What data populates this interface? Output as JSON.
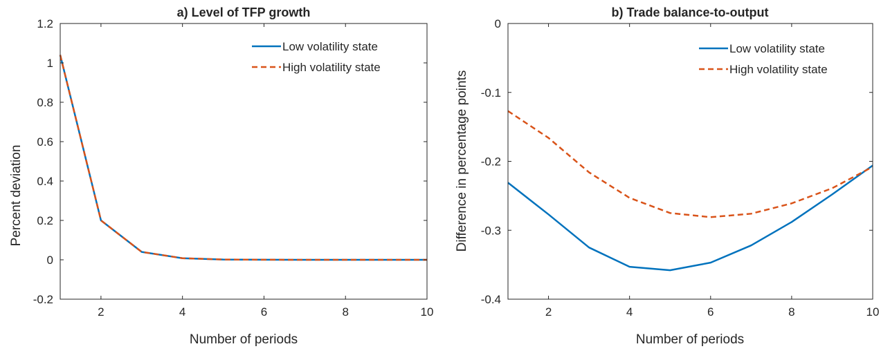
{
  "figure": {
    "background": "#ffffff",
    "axis_color": "#262626"
  },
  "chart_data": [
    {
      "type": "line",
      "title": "a) Level of TFP growth",
      "xlabel": "Number of periods",
      "ylabel": "Percent deviation",
      "xlim": [
        1,
        10
      ],
      "ylim": [
        -0.2,
        1.2
      ],
      "xticks": [
        2,
        4,
        6,
        8,
        10
      ],
      "xtick_labels": [
        "2",
        "4",
        "6",
        "8",
        "10"
      ],
      "yticks": [
        -0.2,
        0,
        0.2,
        0.4,
        0.6,
        0.8,
        1,
        1.2
      ],
      "ytick_labels": [
        "-0.2",
        "0",
        "0.2",
        "0.4",
        "0.6",
        "0.8",
        "1",
        "1.2"
      ],
      "grid": false,
      "legend_position": "top-right",
      "x": [
        1,
        2,
        3,
        4,
        5,
        6,
        7,
        8,
        9,
        10
      ],
      "series": [
        {
          "name": "Low volatility state",
          "color": "#0072BD",
          "style": "solid",
          "values": [
            1.04,
            0.2,
            0.04,
            0.008,
            0.0015,
            0.0003,
            0.0001,
            0,
            0,
            0
          ]
        },
        {
          "name": "High volatility state",
          "color": "#D95319",
          "style": "dashed",
          "values": [
            1.04,
            0.2,
            0.04,
            0.008,
            0.0015,
            0.0003,
            0.0001,
            0,
            0,
            0
          ]
        }
      ]
    },
    {
      "type": "line",
      "title": "b) Trade balance-to-output",
      "xlabel": "Number of periods",
      "ylabel": "Difference in percentage points",
      "xlim": [
        1,
        10
      ],
      "ylim": [
        -0.4,
        0
      ],
      "xticks": [
        2,
        4,
        6,
        8,
        10
      ],
      "xtick_labels": [
        "2",
        "4",
        "6",
        "8",
        "10"
      ],
      "yticks": [
        -0.4,
        -0.3,
        -0.2,
        -0.1,
        0
      ],
      "ytick_labels": [
        "-0.4",
        "-0.3",
        "-0.2",
        "-0.1",
        "0"
      ],
      "grid": false,
      "zero_line": "dotted",
      "legend_position": "top-right",
      "x": [
        1,
        2,
        3,
        4,
        5,
        6,
        7,
        8,
        9,
        10
      ],
      "series": [
        {
          "name": "Low volatility state",
          "color": "#0072BD",
          "style": "solid",
          "values": [
            -0.231,
            -0.277,
            -0.325,
            -0.353,
            -0.358,
            -0.347,
            -0.322,
            -0.288,
            -0.248,
            -0.206
          ]
        },
        {
          "name": "High volatility state",
          "color": "#D95319",
          "style": "dashed",
          "values": [
            -0.127,
            -0.166,
            -0.216,
            -0.253,
            -0.275,
            -0.281,
            -0.276,
            -0.261,
            -0.239,
            -0.208
          ]
        }
      ]
    }
  ]
}
